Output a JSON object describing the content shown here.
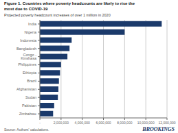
{
  "chart_data": {
    "type": "bar",
    "orientation": "horizontal",
    "title": "Figure 1. Countries where poverty headcounts are likely to rise the\nmost due to COVID-19",
    "subtitle": "Projected poverty headcount increases of over 1 million in 2020",
    "annotations": [
      "Source: Authors' calculations.",
      "BROOKINGS"
    ],
    "categories": [
      "India",
      "Nigeria",
      "Indonesia",
      "Bangladesh",
      "Congo - Kinshasa",
      "Philippines",
      "Ethiopia",
      "Brazil",
      "Afghanistan",
      "Sudan",
      "Pakistan",
      "Zimbabwe"
    ],
    "values": [
      11500000,
      8000000,
      3000000,
      2800000,
      2600000,
      2000000,
      1900000,
      1800000,
      1750000,
      1700000,
      1350000,
      1250000
    ],
    "color": "#1b3a6b",
    "xlim": [
      0,
      12000000
    ],
    "xticks": [
      {
        "value": 0,
        "label": "-"
      },
      {
        "value": 2000000,
        "label": "2,000,000"
      },
      {
        "value": 4000000,
        "label": "4,000,000"
      },
      {
        "value": 6000000,
        "label": "6,000,000"
      },
      {
        "value": 8000000,
        "label": "8,000,000"
      },
      {
        "value": 10000000,
        "label": "10,000,000"
      },
      {
        "value": 12000000,
        "label": "12,000,000"
      }
    ],
    "grid": true
  }
}
